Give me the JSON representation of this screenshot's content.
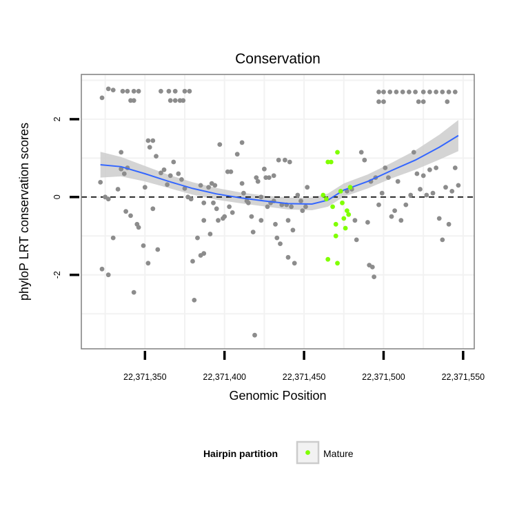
{
  "chart_data": {
    "type": "scatter",
    "title": "Conservation",
    "xlabel": "Genomic Position",
    "ylabel": "phyloP LRT conservation scores",
    "xlim": [
      22371310,
      22371557
    ],
    "ylim": [
      -3.9,
      3.15
    ],
    "x_ticks": [
      {
        "value": 22371350,
        "label": "22,371,350"
      },
      {
        "value": 22371400,
        "label": "22,371,400"
      },
      {
        "value": 22371450,
        "label": "22,371,450"
      },
      {
        "value": 22371500,
        "label": "22,371,500"
      },
      {
        "value": 22371550,
        "label": "22,371,550"
      }
    ],
    "y_ticks": [
      {
        "value": -2,
        "label": "-2"
      },
      {
        "value": 0,
        "label": "0"
      },
      {
        "value": 2,
        "label": "2"
      }
    ],
    "grid": true,
    "reference_line": {
      "y": 0,
      "style": "dashed"
    },
    "colors": {
      "other_points": "#8c8c8c",
      "mature_points": "#80ff00",
      "smooth_line": "#3366ff",
      "ribbon": "#cccccc",
      "panel_border": "#7f7f7f",
      "grid": "#f2f2f2"
    },
    "series": [
      {
        "name": "Other",
        "legend": false,
        "points": [
          [
            22371323,
            2.55
          ],
          [
            22371327,
            2.78
          ],
          [
            22371330,
            2.75
          ],
          [
            22371336,
            2.72
          ],
          [
            22371339,
            2.72
          ],
          [
            22371343,
            2.72
          ],
          [
            22371346,
            2.72
          ],
          [
            22371341,
            2.48
          ],
          [
            22371343,
            2.48
          ],
          [
            22371360,
            2.72
          ],
          [
            22371365,
            2.72
          ],
          [
            22371369,
            2.72
          ],
          [
            22371375,
            2.72
          ],
          [
            22371378,
            2.72
          ],
          [
            22371366,
            2.48
          ],
          [
            22371369,
            2.48
          ],
          [
            22371372,
            2.48
          ],
          [
            22371374,
            2.48
          ],
          [
            22371322,
            0.38
          ],
          [
            22371325,
            0.0
          ],
          [
            22371327,
            -0.05
          ],
          [
            22371330,
            -1.05
          ],
          [
            22371323,
            -1.85
          ],
          [
            22371327,
            -2.0
          ],
          [
            22371333,
            0.2
          ],
          [
            22371335,
            0.72
          ],
          [
            22371337,
            0.6
          ],
          [
            22371339,
            0.75
          ],
          [
            22371335,
            1.15
          ],
          [
            22371338,
            -0.37
          ],
          [
            22371341,
            -0.48
          ],
          [
            22371345,
            -0.7
          ],
          [
            22371346,
            -0.78
          ],
          [
            22371349,
            -1.25
          ],
          [
            22371352,
            -1.7
          ],
          [
            22371343,
            -2.45
          ],
          [
            22371350,
            0.25
          ],
          [
            22371352,
            1.45
          ],
          [
            22371355,
            1.45
          ],
          [
            22371353,
            1.28
          ],
          [
            22371357,
            1.05
          ],
          [
            22371355,
            -0.3
          ],
          [
            22371358,
            -1.35
          ],
          [
            22371360,
            0.62
          ],
          [
            22371362,
            0.7
          ],
          [
            22371364,
            0.32
          ],
          [
            22371366,
            0.55
          ],
          [
            22371368,
            0.9
          ],
          [
            22371371,
            0.6
          ],
          [
            22371373,
            0.45
          ],
          [
            22371375,
            0.22
          ],
          [
            22371377,
            0.0
          ],
          [
            22371379,
            -0.05
          ],
          [
            22371380,
            -1.65
          ],
          [
            22371381,
            -2.65
          ],
          [
            22371383,
            -1.05
          ],
          [
            22371385,
            -1.5
          ],
          [
            22371387,
            -1.45
          ],
          [
            22371385,
            0.3
          ],
          [
            22371387,
            -0.15
          ],
          [
            22371387,
            -0.6
          ],
          [
            22371390,
            0.25
          ],
          [
            22371392,
            0.35
          ],
          [
            22371394,
            0.3
          ],
          [
            22371393,
            -0.15
          ],
          [
            22371395,
            -0.3
          ],
          [
            22371391,
            -0.95
          ],
          [
            22371396,
            -0.6
          ],
          [
            22371397,
            1.35
          ],
          [
            22371399,
            -0.55
          ],
          [
            22371400,
            -0.5
          ],
          [
            22371402,
            0.65
          ],
          [
            22371404,
            0.65
          ],
          [
            22371403,
            -0.25
          ],
          [
            22371405,
            -0.4
          ],
          [
            22371408,
            1.1
          ],
          [
            22371411,
            1.4
          ],
          [
            22371411,
            0.35
          ],
          [
            22371412,
            0.1
          ],
          [
            22371414,
            -0.1
          ],
          [
            22371415,
            -0.15
          ],
          [
            22371417,
            -0.5
          ],
          [
            22371418,
            -0.9
          ],
          [
            22371420,
            0.5
          ],
          [
            22371421,
            0.4
          ],
          [
            22371423,
            0.0
          ],
          [
            22371423,
            -0.6
          ],
          [
            22371419,
            -3.55
          ],
          [
            22371425,
            0.72
          ],
          [
            22371426,
            0.5
          ],
          [
            22371428,
            0.5
          ],
          [
            22371431,
            0.55
          ],
          [
            22371427,
            -0.25
          ],
          [
            22371429,
            -0.15
          ],
          [
            22371431,
            -0.1
          ],
          [
            22371432,
            -0.7
          ],
          [
            22371433,
            -1.05
          ],
          [
            22371435,
            -1.2
          ],
          [
            22371434,
            0.95
          ],
          [
            22371438,
            0.95
          ],
          [
            22371441,
            0.9
          ],
          [
            22371436,
            -0.2
          ],
          [
            22371439,
            -0.2
          ],
          [
            22371442,
            -0.25
          ],
          [
            22371440,
            -0.6
          ],
          [
            22371443,
            -0.85
          ],
          [
            22371440,
            -1.55
          ],
          [
            22371444,
            -1.7
          ],
          [
            22371446,
            0.05
          ],
          [
            22371448,
            -0.1
          ],
          [
            22371449,
            -0.35
          ],
          [
            22371451,
            -0.25
          ],
          [
            22371452,
            0.25
          ],
          [
            22371477,
            0.15
          ],
          [
            22371480,
            0.2
          ],
          [
            22371482,
            -0.6
          ],
          [
            22371483,
            -1.1
          ],
          [
            22371486,
            1.15
          ],
          [
            22371488,
            0.95
          ],
          [
            22371490,
            -0.65
          ],
          [
            22371491,
            -1.75
          ],
          [
            22371493,
            -1.8
          ],
          [
            22371494,
            -2.05
          ],
          [
            22371492,
            0.4
          ],
          [
            22371495,
            0.5
          ],
          [
            22371497,
            -0.2
          ],
          [
            22371499,
            0.1
          ],
          [
            22371501,
            0.75
          ],
          [
            22371503,
            0.5
          ],
          [
            22371505,
            -0.5
          ],
          [
            22371507,
            -0.35
          ],
          [
            22371509,
            0.4
          ],
          [
            22371511,
            -0.6
          ],
          [
            22371514,
            -0.2
          ],
          [
            22371517,
            0.05
          ],
          [
            22371519,
            1.15
          ],
          [
            22371521,
            0.6
          ],
          [
            22371523,
            0.2
          ],
          [
            22371525,
            0.55
          ],
          [
            22371527,
            0.05
          ],
          [
            22371529,
            0.7
          ],
          [
            22371531,
            0.1
          ],
          [
            22371533,
            0.75
          ],
          [
            22371535,
            -0.55
          ],
          [
            22371537,
            -1.1
          ],
          [
            22371539,
            0.25
          ],
          [
            22371541,
            -0.7
          ],
          [
            22371543,
            0.15
          ],
          [
            22371545,
            0.75
          ],
          [
            22371547,
            0.3
          ],
          [
            22371497,
            2.7
          ],
          [
            22371500,
            2.7
          ],
          [
            22371504,
            2.7
          ],
          [
            22371508,
            2.7
          ],
          [
            22371512,
            2.7
          ],
          [
            22371516,
            2.7
          ],
          [
            22371520,
            2.7
          ],
          [
            22371525,
            2.7
          ],
          [
            22371529,
            2.7
          ],
          [
            22371533,
            2.7
          ],
          [
            22371537,
            2.7
          ],
          [
            22371541,
            2.7
          ],
          [
            22371545,
            2.7
          ],
          [
            22371497,
            2.45
          ],
          [
            22371500,
            2.45
          ],
          [
            22371522,
            2.45
          ],
          [
            22371525,
            2.45
          ],
          [
            22371540,
            2.45
          ]
        ]
      },
      {
        "name": "Mature",
        "legend": true,
        "points": [
          [
            22371462,
            0.05
          ],
          [
            22371464,
            -0.05
          ],
          [
            22371465,
            0.9
          ],
          [
            22371467,
            0.9
          ],
          [
            22371471,
            1.15
          ],
          [
            22371468,
            -0.25
          ],
          [
            22371470,
            -0.7
          ],
          [
            22371470,
            -1.0
          ],
          [
            22371465,
            -1.6
          ],
          [
            22371471,
            -1.7
          ],
          [
            22371473,
            0.15
          ],
          [
            22371474,
            -0.15
          ],
          [
            22371475,
            -0.55
          ],
          [
            22371476,
            -0.8
          ],
          [
            22371477,
            -0.35
          ],
          [
            22371478,
            -0.45
          ],
          [
            22371479,
            0.25
          ]
        ]
      }
    ],
    "smooth": {
      "x": [
        22371322,
        22371335,
        22371350,
        22371365,
        22371380,
        22371395,
        22371410,
        22371425,
        22371440,
        22371455,
        22371465,
        22371475,
        22371490,
        22371505,
        22371520,
        22371535,
        22371547
      ],
      "y": [
        0.83,
        0.78,
        0.6,
        0.4,
        0.22,
        0.08,
        -0.02,
        -0.1,
        -0.17,
        -0.18,
        -0.08,
        0.18,
        0.4,
        0.68,
        0.95,
        1.28,
        1.58
      ],
      "se": [
        0.33,
        0.25,
        0.2,
        0.17,
        0.16,
        0.15,
        0.14,
        0.14,
        0.15,
        0.16,
        0.17,
        0.17,
        0.18,
        0.2,
        0.25,
        0.32,
        0.4
      ]
    },
    "legend": {
      "title": "Hairpin partition",
      "entries": [
        {
          "label": "Mature",
          "color": "#80ff00"
        }
      ],
      "position": "bottom"
    }
  }
}
